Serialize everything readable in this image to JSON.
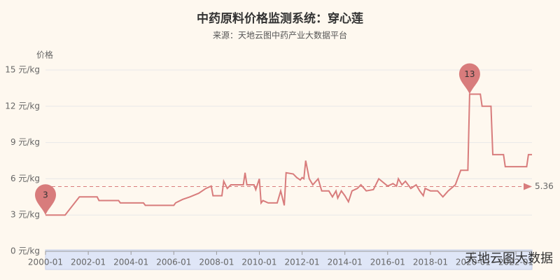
{
  "chart_data": {
    "type": "line",
    "title": "中药原料价格监测系统：穿心莲",
    "subtitle": "来源：天地云图中药产业大数据平台",
    "y_axis_label": "价格",
    "watermark": "天地云图大数据",
    "ylim": [
      0,
      15
    ],
    "yticks": [
      {
        "value": 0,
        "label": "0 元/kg"
      },
      {
        "value": 3,
        "label": "3 元/kg"
      },
      {
        "value": 6,
        "label": "6 元/kg"
      },
      {
        "value": 9,
        "label": "9 元/kg"
      },
      {
        "value": 12,
        "label": "12 元/kg"
      },
      {
        "value": 15,
        "label": "15 元/kg"
      }
    ],
    "xlim": [
      "2000-01",
      "2022-10"
    ],
    "xticks": [
      "2000-01",
      "2002-01",
      "2004-01",
      "2006-01",
      "2008-01",
      "2010-01",
      "2012-01",
      "2014-01",
      "2016-01",
      "2018-01",
      "2020-01",
      "2022-01"
    ],
    "grid": true,
    "series": [
      {
        "name": "穿心莲",
        "color": "#d87c7c",
        "x": [
          "2000-01",
          "2000-12",
          "2001-08",
          "2002-06",
          "2002-07",
          "2003-06",
          "2003-07",
          "2004-08",
          "2004-09",
          "2006-01",
          "2006-02",
          "2006-06",
          "2006-10",
          "2007-03",
          "2007-07",
          "2007-10",
          "2007-11",
          "2008-04",
          "2008-05",
          "2008-07",
          "2008-09",
          "2009-04",
          "2009-05",
          "2009-06",
          "2009-10",
          "2009-11",
          "2010-01",
          "2010-02",
          "2010-03",
          "2010-06",
          "2010-11",
          "2011-01",
          "2011-03",
          "2011-04",
          "2011-08",
          "2011-10",
          "2011-12",
          "2012-01",
          "2012-02",
          "2012-03",
          "2012-05",
          "2012-07",
          "2012-10",
          "2012-12",
          "2013-04",
          "2013-06",
          "2013-08",
          "2013-09",
          "2013-11",
          "2014-01",
          "2014-03",
          "2014-05",
          "2014-08",
          "2014-10",
          "2015-01",
          "2015-05",
          "2015-08",
          "2016-01",
          "2016-04",
          "2016-06",
          "2016-07",
          "2016-09",
          "2016-11",
          "2017-02",
          "2017-05",
          "2017-07",
          "2017-09",
          "2017-10",
          "2018-01",
          "2018-05",
          "2018-08",
          "2018-11",
          "2019-03",
          "2019-06",
          "2019-10",
          "2019-11",
          "2020-05",
          "2020-06",
          "2020-11",
          "2020-12",
          "2021-06",
          "2021-07",
          "2022-07",
          "2022-08",
          "2022-10"
        ],
        "values": [
          3,
          3,
          4.5,
          4.5,
          4.2,
          4.2,
          4,
          4,
          3.8,
          3.8,
          4,
          4.3,
          4.5,
          4.8,
          5.2,
          5.4,
          4.6,
          4.6,
          5.8,
          5.2,
          5.5,
          5.5,
          6.5,
          5.5,
          5.5,
          5.1,
          6,
          4,
          4.2,
          4,
          4,
          5,
          3.8,
          6.5,
          6.4,
          6.1,
          5.9,
          6.1,
          6,
          7.5,
          6,
          5.5,
          6,
          5,
          5,
          4.5,
          5,
          4.4,
          5,
          4.6,
          4.1,
          5,
          5.2,
          5.5,
          5,
          5.1,
          6,
          5.4,
          5.6,
          5.4,
          6,
          5.5,
          5.8,
          5.2,
          5.5,
          5,
          4.6,
          5.2,
          5,
          5,
          4.5,
          5,
          5.5,
          6.7,
          6.7,
          13,
          13,
          12,
          12,
          8,
          8,
          7,
          7,
          8,
          8
        ]
      }
    ],
    "mark_points": [
      {
        "x": "2019-11",
        "value": 13
      },
      {
        "x": "2000-01",
        "value": 3
      }
    ],
    "mark_line": {
      "value": 5.36
    }
  }
}
